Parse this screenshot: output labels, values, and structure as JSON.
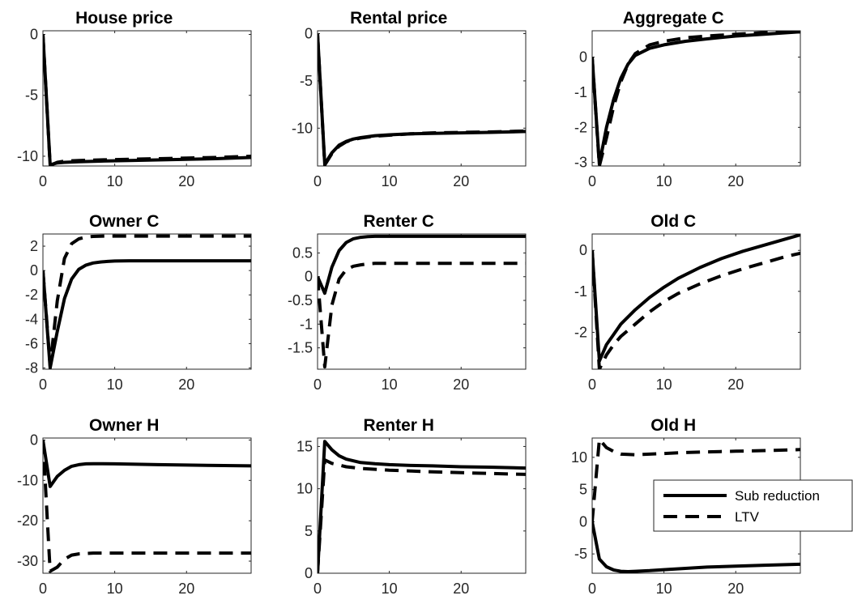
{
  "chart_data": [
    {
      "type": "line",
      "title": "House price",
      "xlim": [
        0,
        29
      ],
      "ylim": [
        -10.8,
        0.3
      ],
      "xticks": [
        0,
        10,
        20
      ],
      "yticks": [
        0,
        -5,
        -10
      ],
      "series": [
        {
          "name": "Sub reduction",
          "style": "solid",
          "x": [
            0,
            1,
            2,
            3,
            5,
            8,
            12,
            16,
            20,
            24,
            29
          ],
          "y": [
            0,
            -10.7,
            -10.55,
            -10.5,
            -10.45,
            -10.4,
            -10.35,
            -10.3,
            -10.25,
            -10.2,
            -10.1
          ]
        },
        {
          "name": "LTV",
          "style": "dashed",
          "x": [
            0,
            1,
            2,
            3,
            5,
            8,
            12,
            16,
            20,
            24,
            29
          ],
          "y": [
            0,
            -10.75,
            -10.5,
            -10.4,
            -10.35,
            -10.3,
            -10.25,
            -10.2,
            -10.15,
            -10.1,
            -10.0
          ]
        }
      ]
    },
    {
      "type": "line",
      "title": "Rental price",
      "xlim": [
        0,
        29
      ],
      "ylim": [
        -14,
        0.3
      ],
      "xticks": [
        0,
        10,
        20
      ],
      "yticks": [
        0,
        -5,
        -10
      ],
      "series": [
        {
          "name": "Sub reduction",
          "style": "solid",
          "x": [
            0,
            1,
            2,
            3,
            4,
            5,
            6,
            8,
            10,
            13,
            16,
            20,
            24,
            29
          ],
          "y": [
            0,
            -13.8,
            -12.6,
            -11.8,
            -11.4,
            -11.15,
            -11.0,
            -10.8,
            -10.7,
            -10.6,
            -10.55,
            -10.5,
            -10.45,
            -10.35
          ]
        },
        {
          "name": "LTV",
          "style": "dashed",
          "x": [
            0,
            1,
            2,
            3,
            4,
            5,
            6,
            8,
            10,
            13,
            16,
            20,
            24,
            29
          ],
          "y": [
            0,
            -13.9,
            -12.7,
            -11.9,
            -11.45,
            -11.2,
            -11.05,
            -10.85,
            -10.75,
            -10.6,
            -10.5,
            -10.45,
            -10.4,
            -10.3
          ]
        }
      ]
    },
    {
      "type": "line",
      "title": "Aggregate C",
      "xlim": [
        0,
        29
      ],
      "ylim": [
        -3.1,
        0.75
      ],
      "xticks": [
        0,
        10,
        20
      ],
      "yticks": [
        0,
        -1,
        -2,
        -3
      ],
      "series": [
        {
          "name": "Sub reduction",
          "style": "solid",
          "x": [
            0,
            1,
            2,
            3,
            4,
            5,
            6,
            8,
            10,
            13,
            16,
            20,
            24,
            29
          ],
          "y": [
            0,
            -3.05,
            -2.0,
            -1.2,
            -0.6,
            -0.2,
            0.05,
            0.25,
            0.35,
            0.45,
            0.52,
            0.6,
            0.65,
            0.72
          ]
        },
        {
          "name": "LTV",
          "style": "dashed",
          "x": [
            0,
            1,
            2,
            3,
            4,
            5,
            6,
            8,
            10,
            13,
            16,
            20,
            24,
            29
          ],
          "y": [
            0,
            -3.1,
            -2.3,
            -1.4,
            -0.7,
            -0.2,
            0.1,
            0.35,
            0.45,
            0.55,
            0.6,
            0.65,
            0.7,
            0.72
          ]
        }
      ]
    },
    {
      "type": "line",
      "title": "Owner C",
      "xlim": [
        0,
        29
      ],
      "ylim": [
        -8.1,
        3.0
      ],
      "xticks": [
        0,
        10,
        20
      ],
      "yticks": [
        2,
        0,
        -2,
        -4,
        -6,
        -8
      ],
      "series": [
        {
          "name": "Sub reduction",
          "style": "solid",
          "x": [
            0,
            1,
            2,
            3,
            4,
            5,
            6,
            7,
            8,
            9,
            10,
            12,
            15,
            20,
            25,
            29
          ],
          "y": [
            0,
            -8.0,
            -5.0,
            -2.3,
            -0.7,
            0.1,
            0.45,
            0.62,
            0.7,
            0.75,
            0.78,
            0.8,
            0.8,
            0.8,
            0.8,
            0.8
          ]
        },
        {
          "name": "LTV",
          "style": "dashed",
          "x": [
            0,
            1,
            2,
            3,
            4,
            5,
            6,
            7,
            8,
            10,
            12,
            15,
            20,
            25,
            29
          ],
          "y": [
            0,
            -7.8,
            -2.5,
            1.0,
            2.2,
            2.6,
            2.75,
            2.8,
            2.82,
            2.83,
            2.83,
            2.83,
            2.83,
            2.83,
            2.83
          ]
        }
      ]
    },
    {
      "type": "line",
      "title": "Renter C",
      "xlim": [
        0,
        29
      ],
      "ylim": [
        -1.95,
        0.9
      ],
      "xticks": [
        0,
        10,
        20
      ],
      "yticks": [
        0.5,
        0,
        -0.5,
        -1,
        -1.5
      ],
      "series": [
        {
          "name": "Sub reduction",
          "style": "solid",
          "x": [
            0,
            1,
            2,
            3,
            4,
            5,
            6,
            7,
            8,
            10,
            12,
            15,
            20,
            25,
            29
          ],
          "y": [
            0,
            -0.35,
            0.2,
            0.55,
            0.72,
            0.8,
            0.83,
            0.845,
            0.85,
            0.85,
            0.85,
            0.85,
            0.85,
            0.85,
            0.85
          ]
        },
        {
          "name": "LTV",
          "style": "dashed",
          "x": [
            0,
            1,
            2,
            3,
            4,
            5,
            6,
            7,
            8,
            10,
            12,
            15,
            20,
            25,
            29
          ],
          "y": [
            0,
            -1.9,
            -0.6,
            -0.05,
            0.15,
            0.22,
            0.25,
            0.27,
            0.28,
            0.28,
            0.28,
            0.28,
            0.28,
            0.28,
            0.28
          ]
        }
      ]
    },
    {
      "type": "line",
      "title": "Old C",
      "xlim": [
        0,
        29
      ],
      "ylim": [
        -2.9,
        0.4
      ],
      "xticks": [
        0,
        10,
        20
      ],
      "yticks": [
        0,
        -1,
        -2
      ],
      "series": [
        {
          "name": "Sub reduction",
          "style": "solid",
          "x": [
            0,
            1,
            2,
            3,
            4,
            6,
            8,
            10,
            12,
            15,
            18,
            21,
            24,
            27,
            29
          ],
          "y": [
            0,
            -2.7,
            -2.3,
            -2.05,
            -1.8,
            -1.45,
            -1.15,
            -0.9,
            -0.68,
            -0.42,
            -0.2,
            -0.02,
            0.13,
            0.28,
            0.38
          ]
        },
        {
          "name": "LTV",
          "style": "dashed",
          "x": [
            0,
            1,
            2,
            3,
            4,
            6,
            8,
            10,
            12,
            15,
            18,
            21,
            24,
            27,
            29
          ],
          "y": [
            0,
            -2.9,
            -2.55,
            -2.3,
            -2.1,
            -1.8,
            -1.5,
            -1.25,
            -1.05,
            -0.82,
            -0.62,
            -0.45,
            -0.3,
            -0.15,
            -0.07
          ]
        }
      ]
    },
    {
      "type": "line",
      "title": "Owner H",
      "xlim": [
        0,
        29
      ],
      "ylim": [
        -33,
        0.5
      ],
      "xticks": [
        0,
        10,
        20
      ],
      "yticks": [
        0,
        -10,
        -20,
        -30
      ],
      "series": [
        {
          "name": "Sub reduction",
          "style": "solid",
          "x": [
            0,
            1,
            2,
            3,
            4,
            5,
            6,
            7,
            8,
            10,
            13,
            16,
            20,
            24,
            29
          ],
          "y": [
            0,
            -11.5,
            -9.0,
            -7.5,
            -6.5,
            -6.1,
            -5.9,
            -5.85,
            -5.85,
            -5.9,
            -6.0,
            -6.1,
            -6.2,
            -6.3,
            -6.4
          ]
        },
        {
          "name": "LTV",
          "style": "dashed",
          "x": [
            0,
            1,
            2,
            3,
            4,
            5,
            6,
            7,
            8,
            10,
            13,
            16,
            20,
            24,
            29
          ],
          "y": [
            0,
            -32.5,
            -31.5,
            -29.5,
            -28.5,
            -28.2,
            -28.1,
            -28.0,
            -28.0,
            -28.0,
            -28.0,
            -28.0,
            -28.0,
            -28.0,
            -28.0
          ]
        }
      ]
    },
    {
      "type": "line",
      "title": "Renter H",
      "xlim": [
        0,
        29
      ],
      "ylim": [
        0,
        16
      ],
      "xticks": [
        0,
        10,
        20
      ],
      "yticks": [
        15,
        10,
        5,
        0
      ],
      "series": [
        {
          "name": "Sub reduction",
          "style": "solid",
          "x": [
            0,
            1,
            2,
            3,
            4,
            5,
            6,
            8,
            10,
            13,
            16,
            20,
            24,
            29
          ],
          "y": [
            0,
            15.6,
            14.6,
            13.9,
            13.5,
            13.3,
            13.1,
            12.95,
            12.85,
            12.75,
            12.7,
            12.6,
            12.55,
            12.45
          ]
        },
        {
          "name": "LTV",
          "style": "dashed",
          "x": [
            0,
            1,
            2,
            3,
            4,
            5,
            6,
            8,
            10,
            13,
            16,
            20,
            24,
            29
          ],
          "y": [
            0,
            13.4,
            13.0,
            12.8,
            12.6,
            12.5,
            12.4,
            12.3,
            12.2,
            12.1,
            12.0,
            11.9,
            11.8,
            11.7
          ]
        }
      ]
    },
    {
      "type": "line",
      "title": "Old H",
      "xlim": [
        0,
        29
      ],
      "ylim": [
        -8,
        13
      ],
      "xticks": [
        0,
        10,
        20
      ],
      "yticks": [
        10,
        5,
        0,
        -5
      ],
      "series": [
        {
          "name": "Sub reduction",
          "style": "solid",
          "x": [
            0,
            1,
            2,
            3,
            4,
            5,
            6,
            8,
            10,
            13,
            16,
            20,
            24,
            29
          ],
          "y": [
            0,
            -5.8,
            -7.0,
            -7.5,
            -7.7,
            -7.75,
            -7.7,
            -7.6,
            -7.45,
            -7.25,
            -7.05,
            -6.9,
            -6.75,
            -6.6
          ]
        },
        {
          "name": "LTV",
          "style": "dashed",
          "x": [
            0,
            1,
            2,
            3,
            4,
            5,
            6,
            8,
            10,
            13,
            16,
            20,
            24,
            29
          ],
          "y": [
            0,
            12.8,
            11.5,
            10.9,
            10.5,
            10.45,
            10.4,
            10.5,
            10.6,
            10.75,
            10.85,
            10.95,
            11.05,
            11.2
          ]
        }
      ]
    }
  ],
  "legend": {
    "location": "inside Old H panel, right",
    "entries": [
      {
        "label": "Sub reduction",
        "style": "solid"
      },
      {
        "label": "LTV",
        "style": "dashed"
      }
    ]
  },
  "colors": {
    "line": "#000000",
    "axis": "#262626",
    "background": "#ffffff"
  }
}
